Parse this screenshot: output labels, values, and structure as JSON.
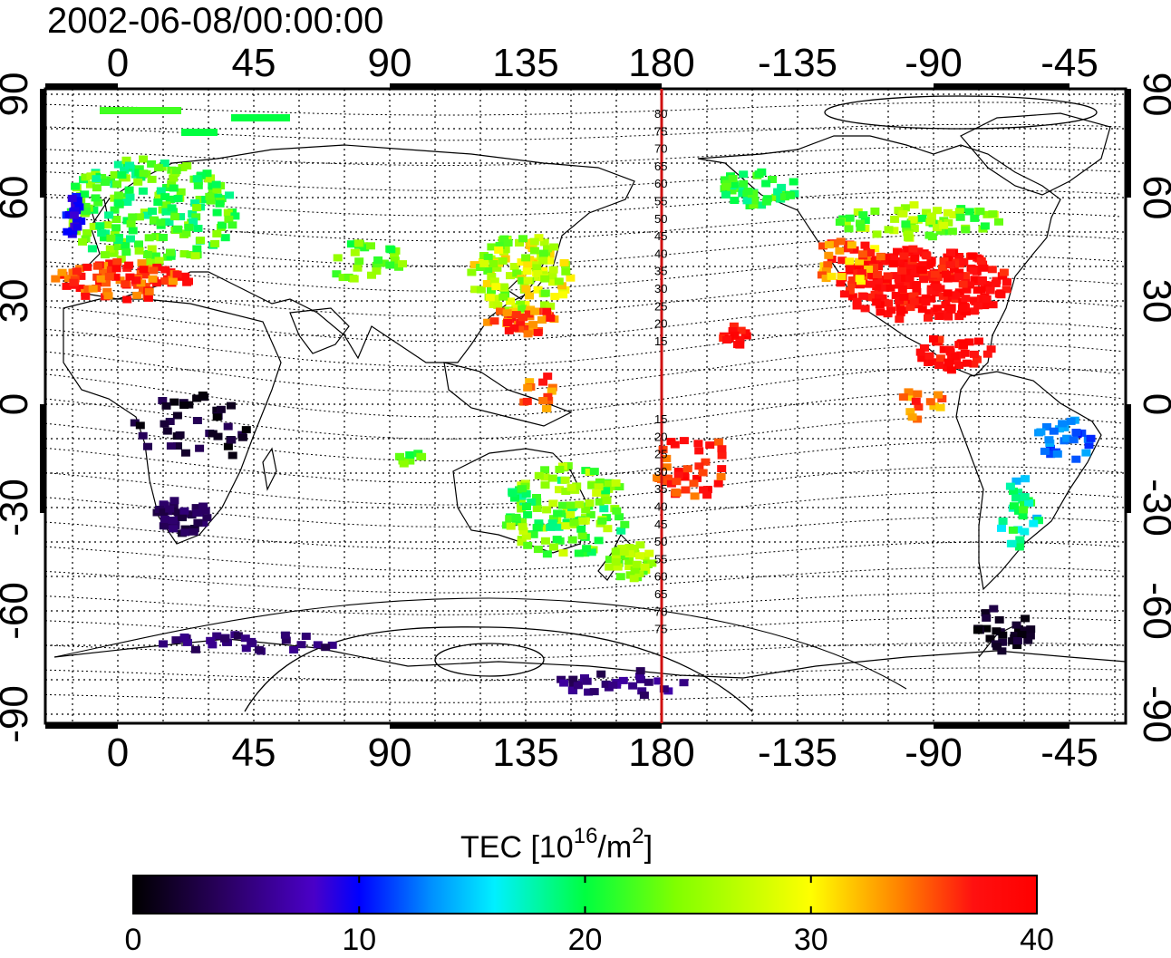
{
  "title": "2002-06-08/00:00:00",
  "map": {
    "top_lon_labels": [
      "0",
      "45",
      "90",
      "135",
      "180",
      "-135",
      "-90",
      "-45"
    ],
    "bottom_lon_labels": [
      "0",
      "45",
      "90",
      "135",
      "180",
      "-135",
      "-90",
      "-45"
    ],
    "left_lat_labels": [
      "90",
      "60",
      "30",
      "0",
      "-30",
      "-60",
      "-90"
    ],
    "right_lat_labels": [
      "90",
      "60",
      "30",
      "0",
      "-30",
      "-60",
      "-90"
    ],
    "dateline_lat_labels_north": [
      "80",
      "75",
      "70",
      "65",
      "60",
      "55",
      "50",
      "45",
      "40",
      "35",
      "30",
      "25",
      "20",
      "15"
    ],
    "dateline_lat_labels_south": [
      "15",
      "20",
      "25",
      "30",
      "35",
      "40",
      "45",
      "50",
      "55",
      "60",
      "65",
      "70",
      "75"
    ]
  },
  "colorbar": {
    "label_main": "TEC  [10",
    "label_sup1": "16",
    "label_mid": "/m",
    "label_sup2": "2",
    "label_end": "]",
    "ticks": [
      "0",
      "10",
      "20",
      "30",
      "40"
    ],
    "min": 0,
    "max": 40
  },
  "colors": {
    "dateline": "#d01010",
    "grid": "#000000"
  }
}
